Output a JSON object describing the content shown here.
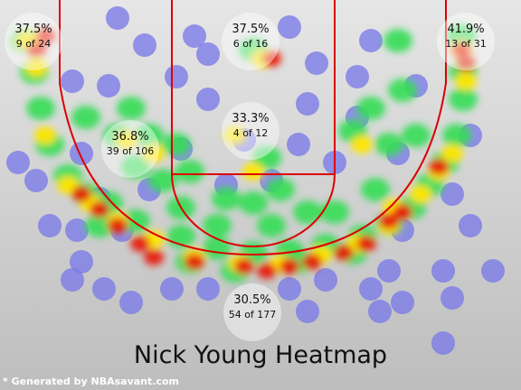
{
  "chart_data": {
    "type": "heatmap",
    "title": "Nick Young Heatmap",
    "zones": [
      {
        "pct": "37.5%",
        "count": "9 of 24"
      },
      {
        "pct": "37.5%",
        "count": "6 of 16"
      },
      {
        "pct": "41.9%",
        "count": "13 of 31"
      },
      {
        "pct": "36.8%",
        "count": "39 of 106"
      },
      {
        "pct": "33.3%",
        "count": "4 of 12"
      },
      {
        "pct": "30.5%",
        "count": "54 of 177"
      }
    ]
  },
  "credit": "* Generated by NBAsavant.com",
  "colors": {
    "background": "#cfcfcf",
    "court_lines": "#dd0000",
    "cold": "#7a7ae8",
    "warm": "#ffe600",
    "hot": "#e61b0a"
  }
}
